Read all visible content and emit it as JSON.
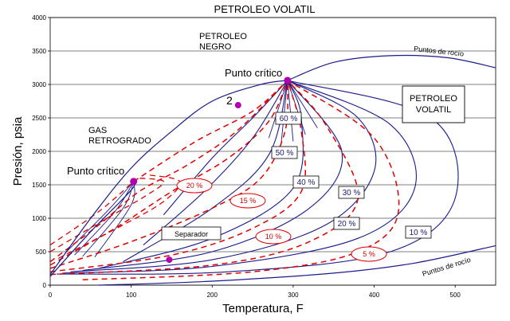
{
  "chart_data": {
    "type": "line",
    "title": "PETROLEO VOLATIL",
    "xlabel": "Temperatura, F",
    "ylabel": "Presión, psia",
    "xlim": [
      0,
      550
    ],
    "ylim": [
      0,
      4000
    ],
    "x_ticks": [
      "0",
      "100",
      "200",
      "300",
      "400",
      "500"
    ],
    "y_ticks": [
      "0",
      "500",
      "1000",
      "1500",
      "2000",
      "2500",
      "3000",
      "3500",
      "4000"
    ],
    "grid": "horizontal",
    "colors": {
      "blue": "#1a1a8c",
      "red": "#e00000",
      "point": "#b000b0"
    },
    "envelope_volatile": {
      "bubble": [
        [
          0,
          160
        ],
        [
          50,
          1000
        ],
        [
          100,
          1750
        ],
        [
          150,
          2300
        ],
        [
          200,
          2750
        ],
        [
          260,
          3000
        ],
        [
          293,
          3060
        ]
      ],
      "dew": [
        [
          293,
          3060
        ],
        [
          350,
          3330
        ],
        [
          420,
          3430
        ],
        [
          490,
          3400
        ],
        [
          550,
          3250
        ]
      ]
    },
    "envelope_gas": {
      "bubble": [
        [
          0,
          130
        ],
        [
          50,
          800
        ],
        [
          100,
          1420
        ],
        [
          103,
          1550
        ]
      ],
      "dew_red": [
        [
          103,
          1550
        ],
        [
          180,
          2150
        ],
        [
          250,
          2600
        ],
        [
          293,
          3060
        ]
      ]
    },
    "envelope_bottom": [
      [
        60,
        0
      ],
      [
        200,
        60
      ],
      [
        350,
        180
      ],
      [
        450,
        330
      ],
      [
        550,
        590
      ]
    ],
    "critical_points": [
      [
        103,
        1550
      ],
      [
        293,
        3060
      ]
    ],
    "extra_points": [
      [
        232,
        2690
      ],
      [
        147,
        380
      ]
    ],
    "annotations": {
      "petroleo_negro": "PETROLEO\nNEGRO",
      "punto_critico_1": "Punto crítico",
      "punto_critico_2": "Punto crítico",
      "label_2": "2",
      "gas_retrogrado": "GAS\nRETROGRADO",
      "petroleo_volatil": "PETROLEO\nVOLATIL",
      "puntos_rocio_top": "Puntos de rocío",
      "puntos_rocio_bottom": "Puntos de rocío",
      "separador": "Separador"
    },
    "quality_labels_blue": [
      "60 %",
      "50 %",
      "40 %",
      "30 %",
      "20 %",
      "10 %"
    ],
    "quality_labels_red": [
      "20 %",
      "15 %",
      "10 %",
      "5 %"
    ]
  }
}
